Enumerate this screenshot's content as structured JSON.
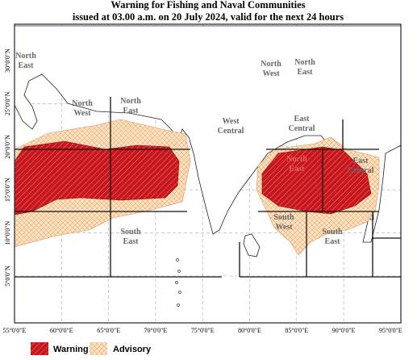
{
  "header": {
    "title_lines": [
      "Warning for Fishing and Naval Communities",
      "issued at 03.00 a.m.  on 20 July 2024, valid for the next 24 hours"
    ]
  },
  "map": {
    "lon_labels": [
      "55°0'0\"E",
      "60°0'0\"E",
      "65°0'0\"E",
      "70°0'0\"E",
      "75°0'0\"E",
      "80°0'0\"E",
      "85°0'0\"E",
      "90°0'0\"E",
      "95°0'0\"E"
    ],
    "lat_labels": [
      "5°0'0\"N",
      "10°0'0\"N",
      "15°0'0\"N",
      "20°0'0\"N",
      "25°0'0\"N",
      "30°0'0\"N"
    ],
    "regions": [
      [
        "North",
        "East"
      ],
      [
        "North",
        "West"
      ],
      [
        "North",
        "East"
      ],
      [
        "West",
        "Central"
      ],
      [
        "North",
        "West"
      ],
      [
        "North",
        "East"
      ],
      [
        "East",
        "Central"
      ],
      [
        "South",
        "East"
      ],
      [
        "South",
        "West"
      ],
      [
        "South",
        "East"
      ],
      [
        "North",
        "East"
      ],
      [
        "East",
        "Central"
      ]
    ]
  },
  "legend": {
    "items": [
      "Warning",
      "Advisory"
    ]
  }
}
